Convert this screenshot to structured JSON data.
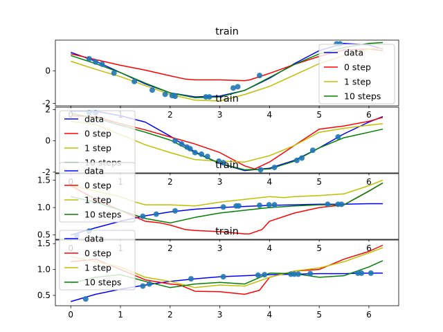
{
  "chart_data": [
    {
      "type": "line",
      "title": "train",
      "xlim": [
        -0.31,
        6.6
      ],
      "ylim": [
        -2.15,
        1.9
      ],
      "yticks": [
        -2,
        0
      ],
      "xticks": [
        0,
        1,
        2,
        3,
        4,
        5,
        6
      ],
      "legend": "top-right",
      "scatter": {
        "x": [
          0.37,
          0.5,
          0.63,
          0.87,
          1.28,
          1.64,
          1.9,
          2.04,
          2.1,
          2.72,
          2.79,
          3.27,
          3.36,
          3.8,
          5.35,
          5.42
        ],
        "y": [
          0.75,
          0.55,
          0.42,
          -0.13,
          -0.65,
          -1.18,
          -1.44,
          -1.52,
          -1.56,
          -1.6,
          -1.6,
          -1.05,
          -0.97,
          -0.28,
          1.67,
          1.67
        ]
      },
      "series": [
        {
          "name": "data",
          "color": "#0000ff",
          "x": [
            0,
            0.5,
            1,
            1.5,
            2,
            2.5,
            3,
            3.5,
            4,
            4.5,
            5,
            5.5,
            6,
            6.28
          ],
          "y": [
            1.15,
            0.6,
            -0.1,
            -0.8,
            -1.35,
            -1.6,
            -1.55,
            -1.2,
            -0.45,
            0.45,
            1.25,
            1.7,
            1.6,
            1.35
          ]
        },
        {
          "name": "0 step",
          "color": "#ff0000",
          "x": [
            0,
            0.5,
            1,
            1.5,
            2,
            2.3,
            2.5,
            3,
            3.5,
            3.6,
            4,
            4.5,
            5,
            5.5,
            6,
            6.28
          ],
          "y": [
            1.05,
            0.7,
            0.35,
            0.05,
            -0.3,
            -0.5,
            -0.55,
            -0.55,
            -0.6,
            -0.55,
            -0.15,
            0.4,
            0.9,
            1.3,
            1.35,
            1.25
          ]
        },
        {
          "name": "1 step",
          "color": "#bfbf00",
          "x": [
            0,
            0.5,
            1,
            1.5,
            2,
            2.5,
            3,
            3.5,
            4,
            4.5,
            5,
            5.5,
            6,
            6.28
          ],
          "y": [
            0.6,
            0.1,
            -0.35,
            -0.9,
            -1.45,
            -1.8,
            -1.85,
            -1.45,
            -0.95,
            -0.25,
            0.45,
            0.95,
            1.35,
            1.4
          ]
        },
        {
          "name": "10 steps",
          "color": "#008000",
          "x": [
            0,
            0.5,
            1,
            1.5,
            2,
            2.5,
            3,
            3.5,
            4,
            4.5,
            5,
            5.5,
            6,
            6.28
          ],
          "y": [
            0.95,
            0.45,
            -0.1,
            -0.75,
            -1.35,
            -1.65,
            -1.6,
            -1.2,
            -0.4,
            0.4,
            1.05,
            1.45,
            1.7,
            1.75
          ]
        }
      ]
    },
    {
      "type": "line",
      "title": "train",
      "xlim": [
        -0.31,
        6.6
      ],
      "ylim": [
        -2.05,
        2.15
      ],
      "yticks": [
        -2,
        0,
        2
      ],
      "xticks": [
        0,
        1,
        2,
        3,
        4,
        5,
        6
      ],
      "legend": "top-left",
      "scatter": {
        "x": [
          0.37,
          0.5,
          2.1,
          2.23,
          2.34,
          2.4,
          2.5,
          2.63,
          2.75,
          2.98,
          3.07,
          3.82,
          4.1,
          4.55,
          4.65,
          4.87,
          5.38
        ],
        "y": [
          1.8,
          1.8,
          0.0,
          -0.2,
          -0.4,
          -0.5,
          -0.75,
          -0.85,
          -1.0,
          -1.3,
          -1.4,
          -1.85,
          -1.7,
          -1.25,
          -1.1,
          -0.6,
          0.25
        ]
      },
      "series": [
        {
          "name": "data",
          "color": "#0000ff",
          "x": [
            0,
            0.5,
            1,
            1.5,
            2,
            2.5,
            3,
            3.5,
            4,
            4.5,
            5,
            5.5,
            6,
            6.28
          ],
          "y": [
            1.9,
            1.9,
            1.6,
            1.2,
            0.3,
            -0.7,
            -1.45,
            -1.9,
            -1.75,
            -1.25,
            -0.45,
            0.45,
            1.2,
            1.55
          ]
        },
        {
          "name": "0 step",
          "color": "#ff0000",
          "x": [
            0,
            0.5,
            1,
            1.5,
            2,
            2.5,
            3,
            3.5,
            3.7,
            4,
            4.5,
            5,
            5.5,
            6,
            6.28
          ],
          "y": [
            1.6,
            1.55,
            1.1,
            0.7,
            0.25,
            -0.2,
            -0.75,
            -1.6,
            -1.8,
            -1.35,
            -0.3,
            0.75,
            0.95,
            1.25,
            1.5
          ]
        },
        {
          "name": "1 step",
          "color": "#bfbf00",
          "x": [
            0,
            0.5,
            1,
            1.5,
            2,
            2.5,
            3,
            3.5,
            4,
            4.5,
            5,
            5.5,
            6,
            6.28
          ],
          "y": [
            1.25,
            1.05,
            0.4,
            -0.25,
            -0.75,
            -1.2,
            -1.3,
            -1.35,
            -0.95,
            -0.3,
            0.55,
            0.8,
            1.0,
            1.1
          ]
        },
        {
          "name": "10 steps",
          "color": "#008000",
          "x": [
            0,
            0.5,
            1,
            1.5,
            2,
            2.5,
            3,
            3.5,
            4,
            4.5,
            5,
            5.5,
            6,
            6.28
          ],
          "y": [
            1.75,
            1.45,
            1.0,
            0.55,
            0.05,
            -0.75,
            -1.45,
            -1.85,
            -1.8,
            -1.3,
            -0.45,
            0.2,
            0.55,
            0.75
          ]
        }
      ]
    },
    {
      "type": "line",
      "title": "train",
      "xlim": [
        -0.31,
        6.6
      ],
      "ylim": [
        0.42,
        1.62
      ],
      "yticks": [
        0.5,
        1.0,
        1.5
      ],
      "xticks": [
        0,
        1,
        2,
        3,
        4,
        5,
        6
      ],
      "legend": "top-left",
      "scatter": {
        "x": [
          0.12,
          0.37,
          1.45,
          1.72,
          2.1,
          3.07,
          3.33,
          3.38,
          3.8,
          3.99,
          4.1,
          5.17,
          5.38,
          5.45
        ],
        "y": [
          0.49,
          0.57,
          0.84,
          0.88,
          0.94,
          1.01,
          1.03,
          1.03,
          1.04,
          1.05,
          1.05,
          1.06,
          1.06,
          1.06
        ]
      },
      "series": [
        {
          "name": "data",
          "color": "#0000ff",
          "x": [
            0,
            0.5,
            1,
            1.5,
            2,
            2.5,
            3,
            3.5,
            4,
            4.5,
            5,
            5.5,
            6,
            6.28
          ],
          "y": [
            0.5,
            0.63,
            0.75,
            0.85,
            0.92,
            0.97,
            1.0,
            1.02,
            1.04,
            1.05,
            1.06,
            1.06,
            1.07,
            1.07
          ]
        },
        {
          "name": "0 step",
          "color": "#ff0000",
          "x": [
            0,
            0.5,
            1,
            1.5,
            1.8,
            2,
            2.3,
            2.5,
            3,
            3.5,
            3.6,
            3.85,
            4,
            4.5,
            5,
            5.5,
            6,
            6.28
          ],
          "y": [
            1.4,
            1.15,
            0.95,
            0.75,
            0.72,
            0.68,
            0.6,
            0.58,
            0.56,
            0.52,
            0.52,
            0.6,
            0.75,
            0.9,
            1.0,
            1.05,
            1.3,
            1.45
          ]
        },
        {
          "name": "1 step",
          "color": "#bfbf00",
          "x": [
            0,
            0.5,
            1,
            1.3,
            1.5,
            2,
            2.5,
            3,
            3.5,
            4,
            4.3,
            4.5,
            5,
            5.5,
            6,
            6.28
          ],
          "y": [
            1.4,
            1.3,
            1.2,
            1.1,
            1.05,
            1.05,
            1.03,
            1.1,
            1.15,
            1.2,
            1.18,
            1.2,
            1.22,
            1.25,
            1.4,
            1.5
          ]
        },
        {
          "name": "10 steps",
          "color": "#008000",
          "x": [
            0,
            0.5,
            1,
            1.5,
            2,
            2.5,
            3,
            3.5,
            4,
            4.5,
            5,
            5.5,
            6,
            6.28
          ],
          "y": [
            1.2,
            1.1,
            0.95,
            0.8,
            0.72,
            0.82,
            0.9,
            0.95,
            1.0,
            1.03,
            1.05,
            1.05,
            1.3,
            1.45
          ]
        }
      ]
    },
    {
      "type": "line",
      "title": "train",
      "xlim": [
        -0.31,
        6.6
      ],
      "ylim": [
        0.3,
        1.57
      ],
      "yticks": [
        0.5,
        1.0,
        1.5
      ],
      "xticks": [
        0,
        1,
        2,
        3,
        4,
        5,
        6
      ],
      "xtick_labels_visible": true,
      "legend": "top-left",
      "scatter": {
        "x": [
          0.3,
          1.45,
          1.58,
          2.42,
          3.07,
          3.77,
          3.9,
          4.43,
          4.5,
          4.58,
          4.82,
          5.78,
          5.85,
          6.04
        ],
        "y": [
          0.43,
          0.68,
          0.72,
          0.82,
          0.86,
          0.89,
          0.9,
          0.91,
          0.91,
          0.91,
          0.92,
          0.93,
          0.93,
          0.93
        ]
      },
      "series": [
        {
          "name": "data",
          "color": "#0000ff",
          "x": [
            0,
            0.5,
            1,
            1.5,
            2,
            2.5,
            3,
            3.5,
            4,
            4.5,
            5,
            5.5,
            6,
            6.28
          ],
          "y": [
            0.38,
            0.52,
            0.62,
            0.7,
            0.77,
            0.82,
            0.86,
            0.88,
            0.9,
            0.91,
            0.92,
            0.92,
            0.93,
            0.93
          ]
        },
        {
          "name": "0 step",
          "color": "#ff0000",
          "x": [
            0,
            0.5,
            1,
            1.5,
            2,
            2.2,
            2.5,
            3,
            3.5,
            3.8,
            4,
            4.5,
            5,
            5.5,
            6,
            6.28
          ],
          "y": [
            1.15,
            1.2,
            1.0,
            0.8,
            0.72,
            0.7,
            0.58,
            0.57,
            0.52,
            0.6,
            0.85,
            0.97,
            1.0,
            1.2,
            1.35,
            1.47
          ]
        },
        {
          "name": "1 step",
          "color": "#bfbf00",
          "x": [
            0,
            0.5,
            1,
            1.5,
            2,
            2.5,
            3,
            3.5,
            4,
            4.5,
            5,
            5.5,
            6,
            6.28
          ],
          "y": [
            1.25,
            1.15,
            1.05,
            0.85,
            0.77,
            0.65,
            0.7,
            0.68,
            0.85,
            0.97,
            1.03,
            1.15,
            1.32,
            1.42
          ]
        },
        {
          "name": "10 steps",
          "color": "#008000",
          "x": [
            0,
            0.5,
            1,
            1.5,
            2,
            2.5,
            3,
            3.5,
            4,
            4.5,
            5,
            5.5,
            6,
            6.28
          ],
          "y": [
            0.73,
            0.85,
            0.9,
            0.77,
            0.65,
            0.72,
            0.75,
            0.72,
            0.93,
            0.92,
            0.85,
            0.88,
            1.05,
            1.17
          ]
        }
      ]
    }
  ],
  "legend_labels": [
    "data",
    "0 step",
    "1 step",
    "10 steps"
  ],
  "scatter_color": "#1f77b4"
}
